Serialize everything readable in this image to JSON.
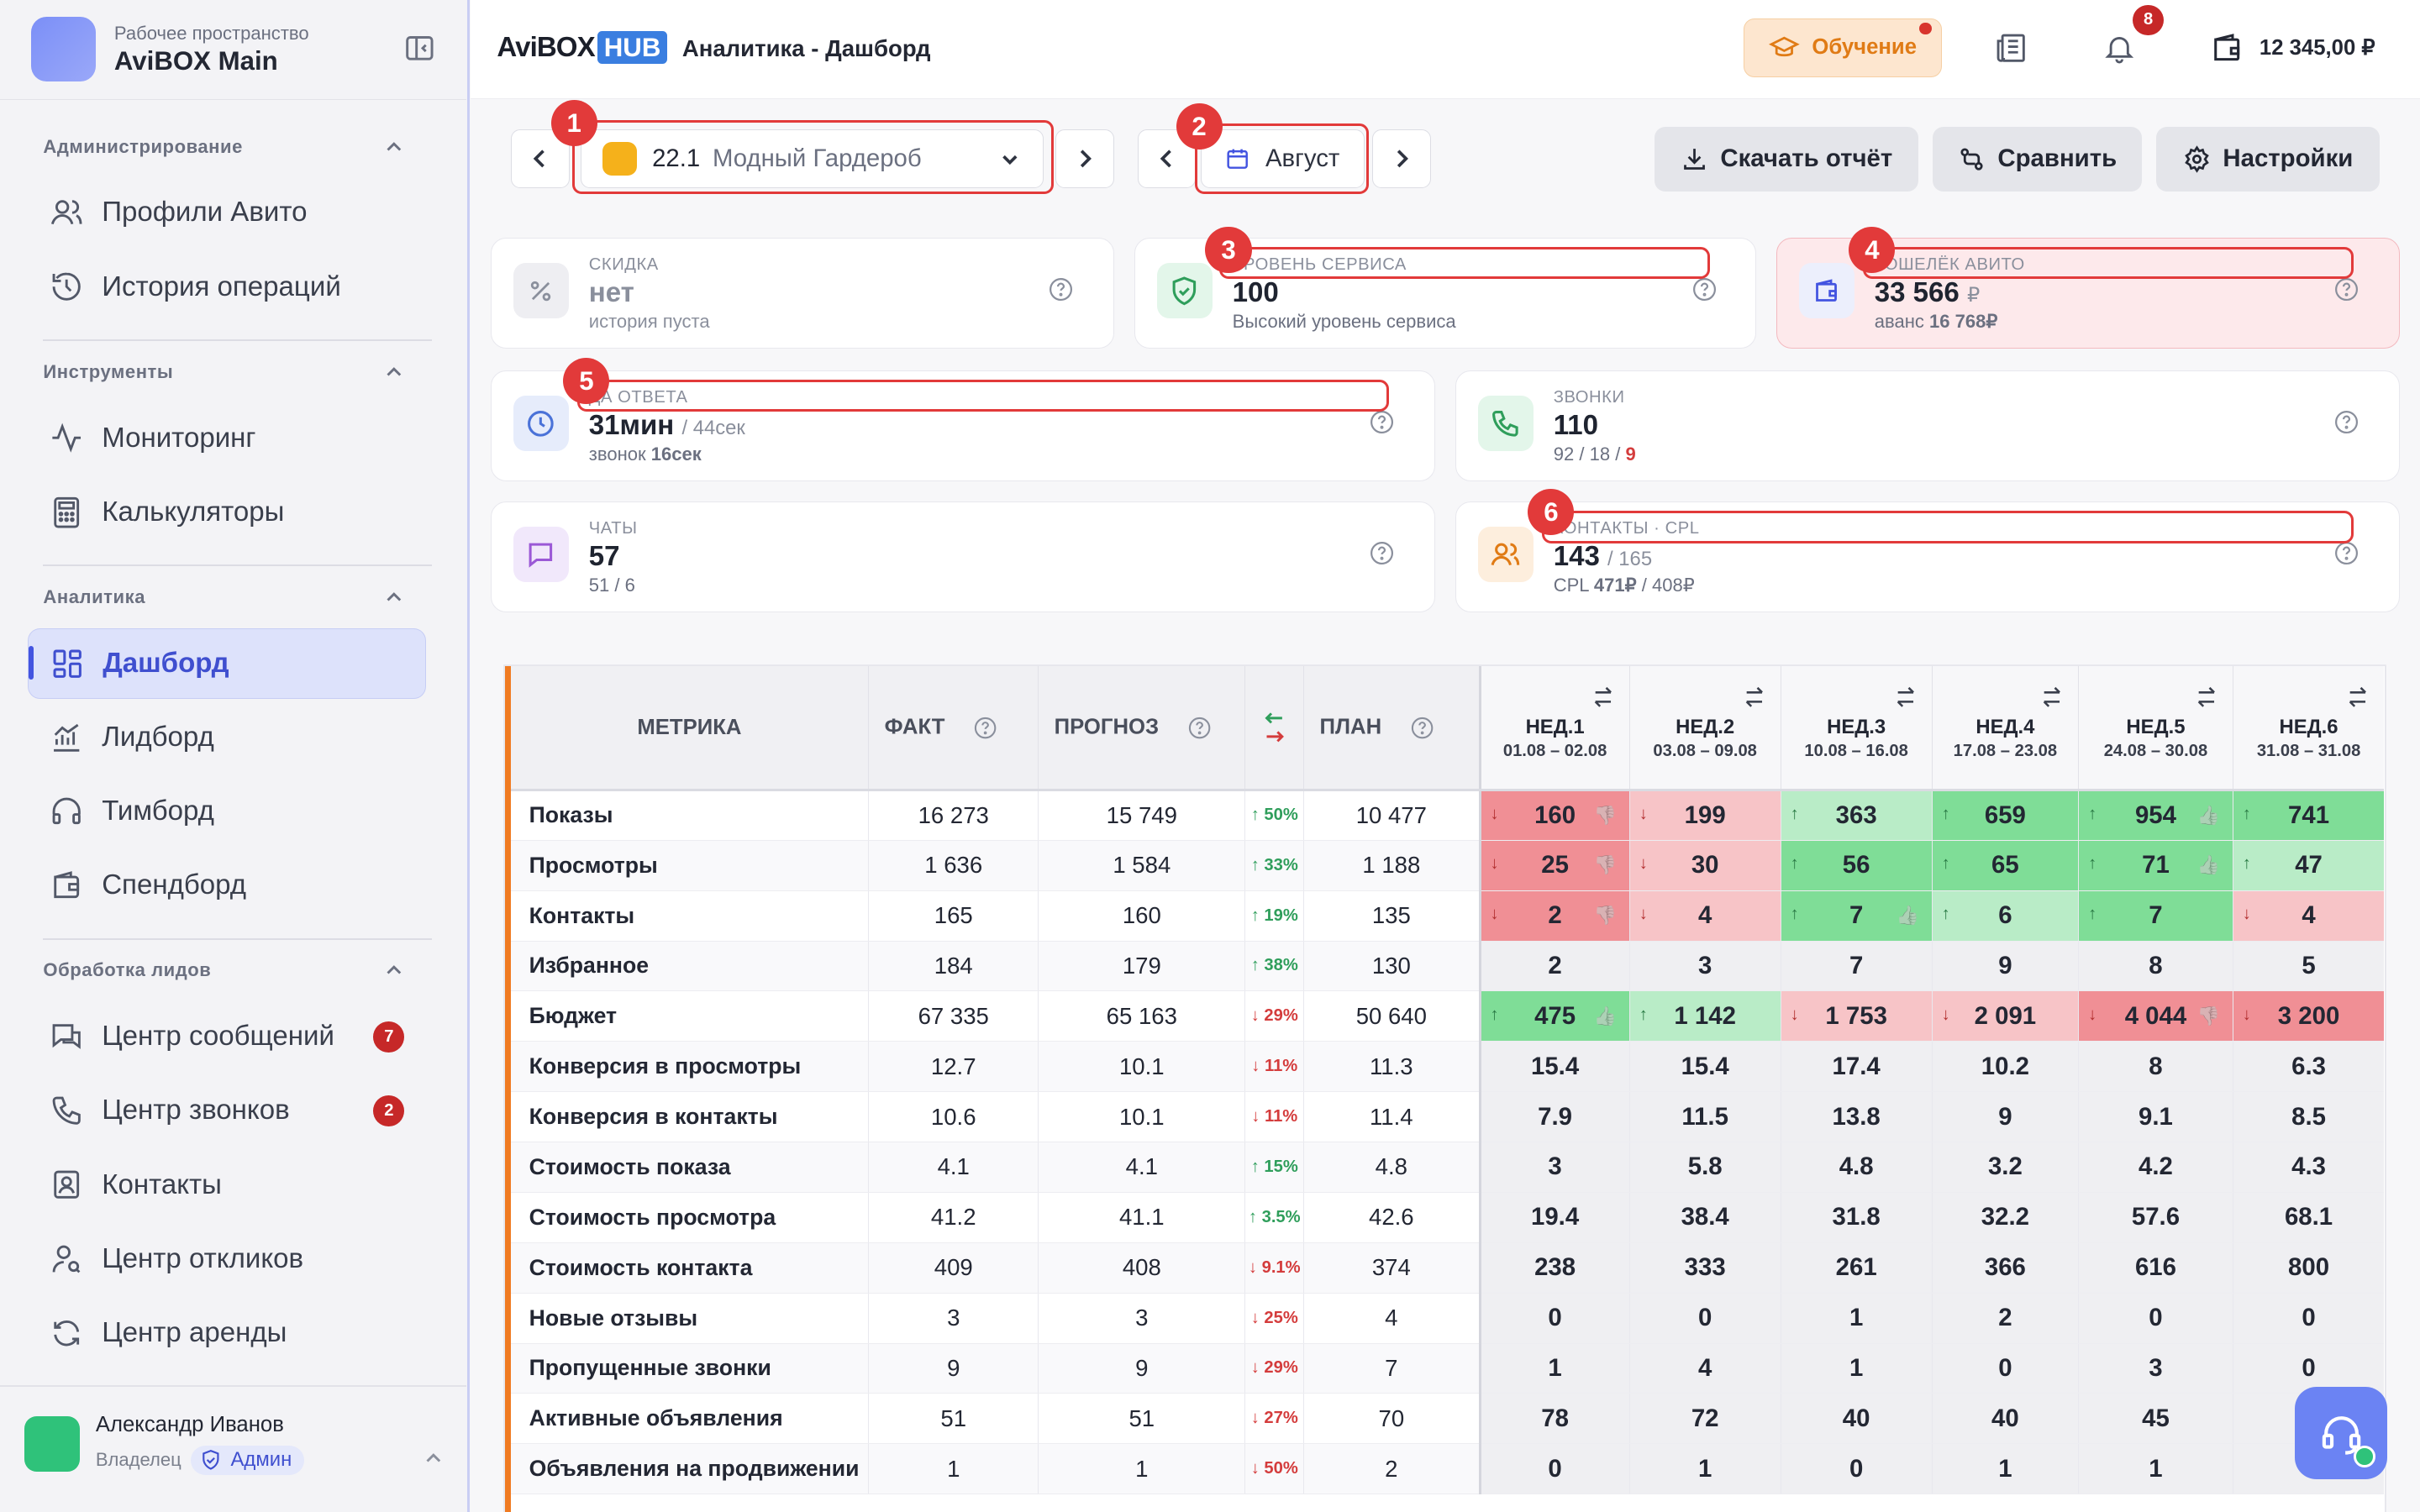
{
  "workspace": {
    "caption": "Рабочее пространство",
    "name": "AviBOX Main"
  },
  "sidebar": {
    "sections": [
      {
        "title": "Администрирование",
        "items": [
          "Профили Авито",
          "История операций"
        ]
      },
      {
        "title": "Инструменты",
        "items": [
          "Мониторинг",
          "Калькуляторы"
        ]
      },
      {
        "title": "Аналитика",
        "items": [
          "Дашборд",
          "Лидборд",
          "Тимборд",
          "Спендборд"
        ]
      },
      {
        "title": "Обработка лидов",
        "items": [
          "Центр сообщений",
          "Центр звонков",
          "Контакты",
          "Центр откликов",
          "Центр аренды"
        ]
      }
    ],
    "badges": {
      "messages": "7",
      "calls": "2"
    },
    "user": {
      "name": "Александр Иванов",
      "role": "Владелец",
      "admin": "Админ"
    }
  },
  "header": {
    "logo_a": "AviBOX",
    "logo_b": "HUB",
    "crumb": "Аналитика - Дашборд",
    "learn": "Обучение",
    "notif_count": "8",
    "balance": "12 345,00 ₽"
  },
  "toolbar": {
    "profile_num": "22.1",
    "profile_name": "Модный Гардероб",
    "month": "Август",
    "download": "Скачать отчёт",
    "compare": "Сравнить",
    "settings": "Настройки"
  },
  "markers": [
    "1",
    "2",
    "3",
    "4",
    "5",
    "6"
  ],
  "cards": {
    "discount": {
      "label": "СКИДКА",
      "value": "нет",
      "sub": "история пуста"
    },
    "service": {
      "label": "УРОВЕНЬ СЕРВИСА",
      "value": "100",
      "sub": "Высокий уровень сервиса"
    },
    "wallet": {
      "label": "КОШЕЛЁК АВИТО",
      "value": "33 566",
      "unit": "₽",
      "sub_a": "аванс ",
      "sub_b": "16 768₽"
    },
    "response": {
      "label": "ДА ОТВЕТА",
      "value": "31мин",
      "extra": "/ 44сек",
      "sub_a": "звонок ",
      "sub_b": "16сек"
    },
    "calls": {
      "label": "ЗВОНКИ",
      "value": "110",
      "sub_a": "92 / 18 / ",
      "sub_b": "9"
    },
    "chats": {
      "label": "ЧАТЫ",
      "value": "57",
      "sub": "51 / 6"
    },
    "contacts": {
      "label": "КОНТАКТЫ · CPL",
      "value": "143",
      "extra": "/ 165",
      "sub_a": "CPL ",
      "sub_b": "471₽",
      "sub_c": " / 408₽"
    }
  },
  "table": {
    "headers": {
      "metric": "МЕТРИКА",
      "fact": "ФАКТ",
      "forecast": "ПРОГНОЗ",
      "plan": "ПЛАН"
    },
    "weeks": [
      {
        "name": "НЕД.1",
        "dates": "01.08 – 02.08"
      },
      {
        "name": "НЕД.2",
        "dates": "03.08 – 09.08"
      },
      {
        "name": "НЕД.3",
        "dates": "10.08 – 16.08"
      },
      {
        "name": "НЕД.4",
        "dates": "17.08 – 23.08"
      },
      {
        "name": "НЕД.5",
        "dates": "24.08 – 30.08"
      },
      {
        "name": "НЕД.6",
        "dates": "31.08 – 31.08"
      }
    ],
    "rows": [
      {
        "metric": "Показы",
        "fact": "16 273",
        "forecast": "15 749",
        "dir": "up",
        "pct": "50%",
        "plan": "10 477",
        "weeks": [
          [
            "160",
            "r2",
            "dn",
            "bad"
          ],
          [
            "199",
            "r1",
            "dn",
            ""
          ],
          [
            "363",
            "g1",
            "up",
            ""
          ],
          [
            "659",
            "g2",
            "up",
            ""
          ],
          [
            "954",
            "g2",
            "up",
            "good"
          ],
          [
            "741",
            "g2",
            "up",
            ""
          ]
        ]
      },
      {
        "metric": "Просмотры",
        "fact": "1 636",
        "forecast": "1 584",
        "dir": "up",
        "pct": "33%",
        "plan": "1 188",
        "weeks": [
          [
            "25",
            "r2",
            "dn",
            "bad"
          ],
          [
            "30",
            "r1",
            "dn",
            ""
          ],
          [
            "56",
            "g2",
            "up",
            ""
          ],
          [
            "65",
            "g2",
            "up",
            ""
          ],
          [
            "71",
            "g2",
            "up",
            "good"
          ],
          [
            "47",
            "g1",
            "up",
            ""
          ]
        ]
      },
      {
        "metric": "Контакты",
        "fact": "165",
        "forecast": "160",
        "dir": "up",
        "pct": "19%",
        "plan": "135",
        "weeks": [
          [
            "2",
            "r2",
            "dn",
            "bad"
          ],
          [
            "4",
            "r1",
            "dn",
            ""
          ],
          [
            "7",
            "g2",
            "up",
            "good"
          ],
          [
            "6",
            "g1",
            "up",
            ""
          ],
          [
            "7",
            "g2",
            "up",
            ""
          ],
          [
            "4",
            "r1",
            "dn",
            ""
          ]
        ]
      },
      {
        "metric": "Избранное",
        "fact": "184",
        "forecast": "179",
        "dir": "up",
        "pct": "38%",
        "plan": "130",
        "weeks": [
          [
            "2",
            "",
            "",
            ""
          ],
          [
            "3",
            "",
            "",
            ""
          ],
          [
            "7",
            "",
            "",
            ""
          ],
          [
            "9",
            "",
            "",
            ""
          ],
          [
            "8",
            "",
            "",
            ""
          ],
          [
            "5",
            "",
            "",
            ""
          ]
        ]
      },
      {
        "metric": "Бюджет",
        "fact": "67 335",
        "forecast": "65 163",
        "dir": "dn",
        "pct": "29%",
        "plan": "50 640",
        "weeks": [
          [
            "475",
            "g2",
            "up",
            "good"
          ],
          [
            "1 142",
            "g1",
            "up",
            ""
          ],
          [
            "1 753",
            "r1",
            "dn",
            ""
          ],
          [
            "2 091",
            "r1",
            "dn",
            ""
          ],
          [
            "4 044",
            "r2",
            "dn",
            "bad"
          ],
          [
            "3 200",
            "r2",
            "dn",
            ""
          ]
        ]
      },
      {
        "metric": "Конверсия в просмотры",
        "fact": "12.7",
        "forecast": "10.1",
        "dir": "dn",
        "pct": "11%",
        "plan": "11.3",
        "weeks": [
          [
            "15.4",
            "",
            "",
            ""
          ],
          [
            "15.4",
            "",
            "",
            ""
          ],
          [
            "17.4",
            "",
            "",
            ""
          ],
          [
            "10.2",
            "",
            "",
            ""
          ],
          [
            "8",
            "",
            "",
            ""
          ],
          [
            "6.3",
            "",
            "",
            ""
          ]
        ]
      },
      {
        "metric": "Конверсия в контакты",
        "fact": "10.6",
        "forecast": "10.1",
        "dir": "dn",
        "pct": "11%",
        "plan": "11.4",
        "weeks": [
          [
            "7.9",
            "",
            "",
            ""
          ],
          [
            "11.5",
            "",
            "",
            ""
          ],
          [
            "13.8",
            "",
            "",
            ""
          ],
          [
            "9",
            "",
            "",
            ""
          ],
          [
            "9.1",
            "",
            "",
            ""
          ],
          [
            "8.5",
            "",
            "",
            ""
          ]
        ]
      },
      {
        "metric": "Стоимость показа",
        "fact": "4.1",
        "forecast": "4.1",
        "dir": "up",
        "pct": "15%",
        "plan": "4.8",
        "weeks": [
          [
            "3",
            "",
            "",
            ""
          ],
          [
            "5.8",
            "",
            "",
            ""
          ],
          [
            "4.8",
            "",
            "",
            ""
          ],
          [
            "3.2",
            "",
            "",
            ""
          ],
          [
            "4.2",
            "",
            "",
            ""
          ],
          [
            "4.3",
            "",
            "",
            ""
          ]
        ]
      },
      {
        "metric": "Стоимость просмотра",
        "fact": "41.2",
        "forecast": "41.1",
        "dir": "up",
        "pct": "3.5%",
        "plan": "42.6",
        "weeks": [
          [
            "19.4",
            "",
            "",
            ""
          ],
          [
            "38.4",
            "",
            "",
            ""
          ],
          [
            "31.8",
            "",
            "",
            ""
          ],
          [
            "32.2",
            "",
            "",
            ""
          ],
          [
            "57.6",
            "",
            "",
            ""
          ],
          [
            "68.1",
            "",
            "",
            ""
          ]
        ]
      },
      {
        "metric": "Стоимость контакта",
        "fact": "409",
        "forecast": "408",
        "dir": "dn",
        "pct": "9.1%",
        "plan": "374",
        "weeks": [
          [
            "238",
            "",
            "",
            ""
          ],
          [
            "333",
            "",
            "",
            ""
          ],
          [
            "261",
            "",
            "",
            ""
          ],
          [
            "366",
            "",
            "",
            ""
          ],
          [
            "616",
            "",
            "",
            ""
          ],
          [
            "800",
            "",
            "",
            ""
          ]
        ]
      },
      {
        "metric": "Новые отзывы",
        "fact": "3",
        "forecast": "3",
        "dir": "dn",
        "pct": "25%",
        "plan": "4",
        "weeks": [
          [
            "0",
            "",
            "",
            ""
          ],
          [
            "0",
            "",
            "",
            ""
          ],
          [
            "1",
            "",
            "",
            ""
          ],
          [
            "2",
            "",
            "",
            ""
          ],
          [
            "0",
            "",
            "",
            ""
          ],
          [
            "0",
            "",
            "",
            ""
          ]
        ]
      },
      {
        "metric": "Пропущенные звонки",
        "fact": "9",
        "forecast": "9",
        "dir": "dn",
        "pct": "29%",
        "plan": "7",
        "weeks": [
          [
            "1",
            "",
            "",
            ""
          ],
          [
            "4",
            "",
            "",
            ""
          ],
          [
            "1",
            "",
            "",
            ""
          ],
          [
            "0",
            "",
            "",
            ""
          ],
          [
            "3",
            "",
            "",
            ""
          ],
          [
            "0",
            "",
            "",
            ""
          ]
        ]
      },
      {
        "metric": "Активные объявления",
        "fact": "51",
        "forecast": "51",
        "dir": "dn",
        "pct": "27%",
        "plan": "70",
        "weeks": [
          [
            "78",
            "",
            "",
            ""
          ],
          [
            "72",
            "",
            "",
            ""
          ],
          [
            "40",
            "",
            "",
            ""
          ],
          [
            "40",
            "",
            "",
            ""
          ],
          [
            "45",
            "",
            "",
            ""
          ],
          [
            "",
            "",
            "",
            ""
          ]
        ]
      },
      {
        "metric": "Объявления на продвижении",
        "fact": "1",
        "forecast": "1",
        "dir": "dn",
        "pct": "50%",
        "plan": "2",
        "weeks": [
          [
            "0",
            "",
            "",
            ""
          ],
          [
            "1",
            "",
            "",
            ""
          ],
          [
            "0",
            "",
            "",
            ""
          ],
          [
            "1",
            "",
            "",
            ""
          ],
          [
            "1",
            "",
            "",
            ""
          ],
          [
            "",
            "",
            "",
            ""
          ]
        ]
      }
    ]
  },
  "colors": {
    "accent": "#4354e0",
    "orange": "#f07b22",
    "red": "#e23a3a",
    "green_strong": "#7fdd97",
    "green_light": "#b9ecc7",
    "red_strong": "#f08f95",
    "red_light": "#f7c4c7"
  }
}
